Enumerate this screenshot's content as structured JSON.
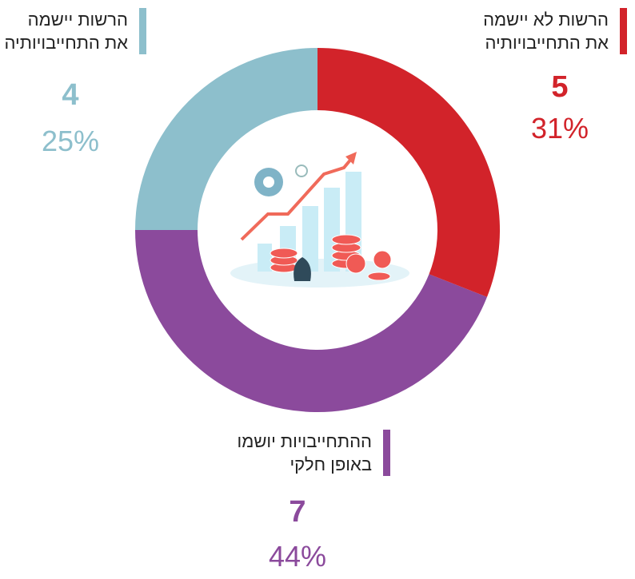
{
  "chart_data": {
    "type": "pie",
    "donut": true,
    "categories": [
      [
        "הרשות לא יישמה",
        "את התחייבויותיה"
      ],
      [
        "ההתחייבויות יושמו",
        "באופן חלקי"
      ],
      [
        "הרשות יישמה",
        "את התחייבויותיה"
      ]
    ],
    "counts": [
      5,
      7,
      4
    ],
    "values": [
      31,
      44,
      25
    ],
    "value_labels": [
      "31%",
      "44%",
      "25%"
    ],
    "colors": [
      "#d2232a",
      "#8b4a9c",
      "#8dbfcc"
    ]
  }
}
